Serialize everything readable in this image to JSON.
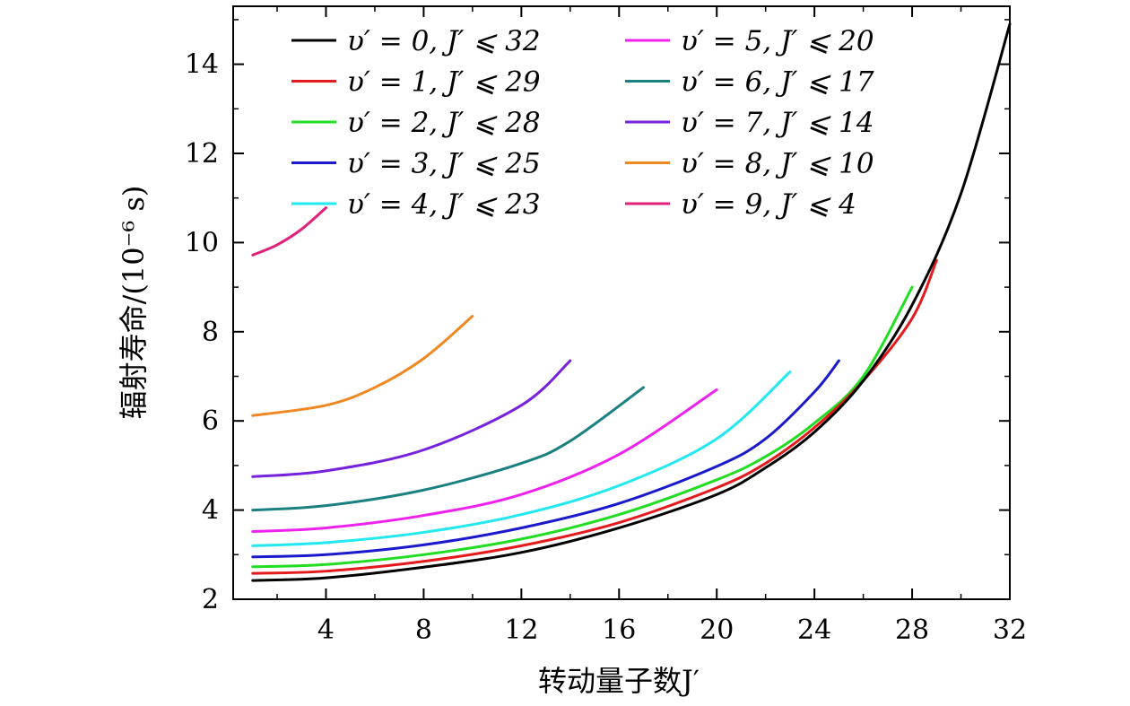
{
  "chart_data": {
    "type": "line",
    "title": "",
    "xlabel": "转动量子数J′",
    "ylabel": "辐射寿命/(10⁻⁶ s)",
    "xlim": [
      0.2,
      32
    ],
    "ylim": [
      2,
      15.3
    ],
    "xticks": [
      4,
      8,
      12,
      16,
      20,
      24,
      28,
      32
    ],
    "yticks": [
      2,
      4,
      6,
      8,
      10,
      12,
      14
    ],
    "grid": false,
    "legend_position": "top",
    "series": [
      {
        "name": "υ′ = 0,  J′ ⩽ 32",
        "color": "#000000",
        "x": [
          1,
          4,
          8,
          12,
          16,
          20,
          22,
          24,
          26,
          28,
          30,
          32
        ],
        "y": [
          2.42,
          2.48,
          2.72,
          3.05,
          3.6,
          4.35,
          4.95,
          5.75,
          6.9,
          8.6,
          11.1,
          14.9
        ]
      },
      {
        "name": "υ′ = 1,  J′ ⩽ 29",
        "color": "#e41a1c",
        "x": [
          1,
          4,
          8,
          12,
          16,
          20,
          22,
          24,
          26,
          28,
          29
        ],
        "y": [
          2.58,
          2.63,
          2.85,
          3.2,
          3.72,
          4.5,
          5.05,
          5.85,
          6.9,
          8.3,
          9.6
        ]
      },
      {
        "name": "υ′ = 2,  J′ ⩽ 28",
        "color": "#22dd22",
        "x": [
          1,
          4,
          8,
          12,
          16,
          20,
          22,
          24,
          26,
          28
        ],
        "y": [
          2.73,
          2.78,
          3.0,
          3.35,
          3.9,
          4.68,
          5.2,
          5.95,
          7.0,
          9.0
        ]
      },
      {
        "name": "υ′ = 3,  J′ ⩽ 25",
        "color": "#1a1acc",
        "x": [
          1,
          4,
          8,
          12,
          16,
          20,
          22,
          24,
          25
        ],
        "y": [
          2.95,
          3.0,
          3.22,
          3.6,
          4.15,
          4.98,
          5.6,
          6.65,
          7.35
        ]
      },
      {
        "name": "υ′ = 4,  J′ ⩽ 23",
        "color": "#22e8f0",
        "x": [
          1,
          4,
          8,
          12,
          16,
          20,
          23
        ],
        "y": [
          3.2,
          3.27,
          3.5,
          3.9,
          4.55,
          5.6,
          7.1
        ]
      },
      {
        "name": "υ′ = 5,  J′ ⩽ 20",
        "color": "#ee22ee",
        "x": [
          1,
          4,
          8,
          12,
          16,
          20
        ],
        "y": [
          3.52,
          3.6,
          3.88,
          4.35,
          5.25,
          6.7
        ]
      },
      {
        "name": "υ′ = 6,  J′ ⩽ 17",
        "color": "#1a8080",
        "x": [
          1,
          4,
          8,
          12,
          14,
          17
        ],
        "y": [
          4.0,
          4.1,
          4.45,
          5.05,
          5.55,
          6.75
        ]
      },
      {
        "name": "υ′ = 7,  J′ ⩽ 14",
        "color": "#7722dd",
        "x": [
          1,
          4,
          8,
          12,
          14
        ],
        "y": [
          4.75,
          4.88,
          5.35,
          6.35,
          7.35
        ]
      },
      {
        "name": "υ′ = 8,  J′ ⩽ 10",
        "color": "#f08822",
        "x": [
          1,
          4,
          6,
          8,
          10
        ],
        "y": [
          6.12,
          6.35,
          6.75,
          7.4,
          8.35
        ]
      },
      {
        "name": "υ′ = 9,  J′ ⩽ 4",
        "color": "#e0207a",
        "x": [
          1,
          2,
          3,
          4
        ],
        "y": [
          9.72,
          9.95,
          10.3,
          10.78
        ]
      }
    ]
  }
}
